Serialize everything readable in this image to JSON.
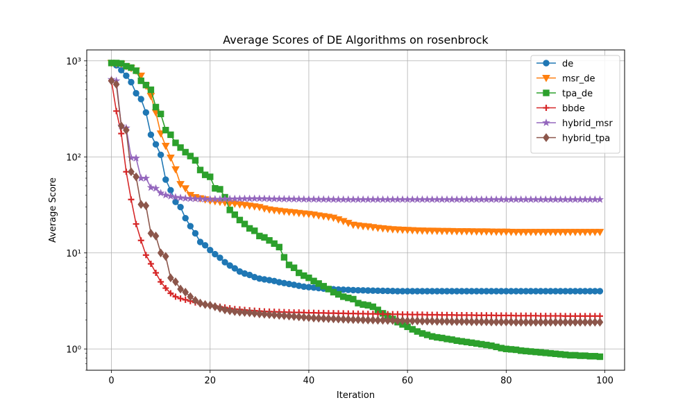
{
  "chart_data": {
    "type": "line",
    "title": "Average Scores of DE Algorithms on rosenbrock",
    "xlabel": "Iteration",
    "ylabel": "Average Score",
    "yscale": "log",
    "xlim": [
      -5,
      104
    ],
    "ylim": [
      0.6,
      1300
    ],
    "xticks": [
      0,
      20,
      40,
      60,
      80,
      100
    ],
    "xtick_labels": [
      "0",
      "20",
      "40",
      "60",
      "80",
      "100"
    ],
    "yticks": [
      1,
      10,
      100,
      1000
    ],
    "ytick_labels": [
      "10⁰",
      "10¹",
      "10²",
      "10³"
    ],
    "grid": true,
    "legend_position": "top-right",
    "series": [
      {
        "name": "de",
        "color": "#1f77b4",
        "marker": "circle",
        "x": [
          0,
          1,
          2,
          3,
          4,
          5,
          6,
          7,
          8,
          9,
          10,
          11,
          12,
          13,
          14,
          15,
          16,
          17,
          18,
          19,
          20,
          21,
          22,
          23,
          24,
          25,
          26,
          27,
          28,
          29,
          30,
          31,
          32,
          33,
          34,
          35,
          36,
          37,
          38,
          39,
          40,
          41,
          42,
          43,
          44,
          45,
          46,
          47,
          48,
          49,
          50,
          51,
          52,
          53,
          54,
          55,
          56,
          57,
          58,
          59,
          60,
          61,
          62,
          63,
          64,
          65,
          66,
          67,
          68,
          69,
          70,
          71,
          72,
          73,
          74,
          75,
          76,
          77,
          78,
          79,
          80,
          81,
          82,
          83,
          84,
          85,
          86,
          87,
          88,
          89,
          90,
          91,
          92,
          93,
          94,
          95,
          96,
          97,
          98,
          99
        ],
        "values": [
          950,
          900,
          800,
          700,
          600,
          460,
          400,
          290,
          170,
          135,
          105,
          58,
          45,
          34,
          30,
          23,
          19,
          16,
          13,
          12,
          10.7,
          9.7,
          8.9,
          8.0,
          7.4,
          6.9,
          6.4,
          6.1,
          5.9,
          5.6,
          5.4,
          5.3,
          5.2,
          5.1,
          4.95,
          4.85,
          4.75,
          4.65,
          4.55,
          4.45,
          4.4,
          4.35,
          4.3,
          4.25,
          4.2,
          4.18,
          4.16,
          4.14,
          4.12,
          4.1,
          4.08,
          4.07,
          4.06,
          4.05,
          4.04,
          4.03,
          4.02,
          4.01,
          4.0,
          4.0,
          4.0,
          4.0,
          4.0,
          4.0,
          4.0,
          4.0,
          4.0,
          4.0,
          4.0,
          4.0,
          4.0,
          4.0,
          4.0,
          4.0,
          4.0,
          4.0,
          4.0,
          4.0,
          4.0,
          4.0,
          4.0,
          4.0,
          4.0,
          4.0,
          4.0,
          4.0,
          4.0,
          4.0,
          4.0,
          4.0,
          4.0,
          4.0,
          4.0,
          4.0,
          4.0,
          4.0,
          4.0,
          4.0,
          4.0,
          4.0
        ]
      },
      {
        "name": "msr_de",
        "color": "#ff7f0e",
        "marker": "triangle-down",
        "x": [
          0,
          1,
          2,
          3,
          4,
          5,
          6,
          7,
          8,
          9,
          10,
          11,
          12,
          13,
          14,
          15,
          16,
          17,
          18,
          19,
          20,
          21,
          22,
          23,
          24,
          25,
          26,
          27,
          28,
          29,
          30,
          31,
          32,
          33,
          34,
          35,
          36,
          37,
          38,
          39,
          40,
          41,
          42,
          43,
          44,
          45,
          46,
          47,
          48,
          49,
          50,
          51,
          52,
          53,
          54,
          55,
          56,
          57,
          58,
          59,
          60,
          61,
          62,
          63,
          64,
          65,
          66,
          67,
          68,
          69,
          70,
          71,
          72,
          73,
          74,
          75,
          76,
          77,
          78,
          79,
          80,
          81,
          82,
          83,
          84,
          85,
          86,
          87,
          88,
          89,
          90,
          91,
          92,
          93,
          94,
          95,
          96,
          97,
          98,
          99
        ],
        "values": [
          950,
          940,
          930,
          880,
          840,
          790,
          700,
          550,
          430,
          290,
          175,
          130,
          98,
          74,
          52,
          47,
          40,
          38,
          37,
          36,
          35,
          34.5,
          34,
          33.5,
          33,
          32.5,
          32,
          31.5,
          31,
          30.5,
          30,
          29,
          28.3,
          27.8,
          27.4,
          27,
          26.7,
          26.4,
          26,
          25.7,
          25.4,
          25,
          24.5,
          24.1,
          23.7,
          23.2,
          22.3,
          21.4,
          20.5,
          19.6,
          19.3,
          19.0,
          18.8,
          18.5,
          18.2,
          18.0,
          17.8,
          17.6,
          17.5,
          17.4,
          17.3,
          17.2,
          17.1,
          17.05,
          17.0,
          17.0,
          16.95,
          16.9,
          16.9,
          16.85,
          16.8,
          16.8,
          16.8,
          16.75,
          16.7,
          16.7,
          16.7,
          16.65,
          16.6,
          16.6,
          16.6,
          16.55,
          16.5,
          16.5,
          16.5,
          16.5,
          16.5,
          16.5,
          16.5,
          16.5,
          16.5,
          16.5,
          16.5,
          16.5,
          16.5,
          16.5,
          16.5,
          16.5,
          16.5,
          16.5
        ]
      },
      {
        "name": "tpa_de",
        "color": "#2ca02c",
        "marker": "square",
        "x": [
          0,
          1,
          2,
          3,
          4,
          5,
          6,
          7,
          8,
          9,
          10,
          11,
          12,
          13,
          14,
          15,
          16,
          17,
          18,
          19,
          20,
          21,
          22,
          23,
          24,
          25,
          26,
          27,
          28,
          29,
          30,
          31,
          32,
          33,
          34,
          35,
          36,
          37,
          38,
          39,
          40,
          41,
          42,
          43,
          44,
          45,
          46,
          47,
          48,
          49,
          50,
          51,
          52,
          53,
          54,
          55,
          56,
          57,
          58,
          59,
          60,
          61,
          62,
          63,
          64,
          65,
          66,
          67,
          68,
          69,
          70,
          71,
          72,
          73,
          74,
          75,
          76,
          77,
          78,
          79,
          80,
          81,
          82,
          83,
          84,
          85,
          86,
          87,
          88,
          89,
          90,
          91,
          92,
          93,
          94,
          95,
          96,
          97,
          98,
          99
        ],
        "values": [
          950,
          950,
          940,
          880,
          850,
          790,
          620,
          560,
          500,
          330,
          280,
          190,
          170,
          140,
          125,
          112,
          102,
          92,
          73,
          65,
          62,
          47,
          46,
          38,
          28,
          25,
          22,
          20,
          18,
          17,
          15,
          14.5,
          13.5,
          12.5,
          11.5,
          9,
          7.5,
          7.0,
          6.2,
          5.8,
          5.5,
          5.1,
          4.8,
          4.5,
          4.2,
          3.9,
          3.7,
          3.5,
          3.4,
          3.3,
          3.0,
          2.9,
          2.85,
          2.75,
          2.55,
          2.35,
          2.2,
          2.05,
          1.9,
          1.8,
          1.7,
          1.6,
          1.52,
          1.45,
          1.4,
          1.35,
          1.32,
          1.3,
          1.27,
          1.25,
          1.22,
          1.2,
          1.18,
          1.16,
          1.14,
          1.12,
          1.1,
          1.08,
          1.05,
          1.02,
          1.0,
          0.99,
          0.98,
          0.96,
          0.95,
          0.94,
          0.93,
          0.92,
          0.91,
          0.9,
          0.89,
          0.88,
          0.87,
          0.86,
          0.86,
          0.85,
          0.85,
          0.84,
          0.84,
          0.83
        ]
      },
      {
        "name": "bbde",
        "color": "#d62728",
        "marker": "plus",
        "x": [
          0,
          1,
          2,
          3,
          4,
          5,
          6,
          7,
          8,
          9,
          10,
          11,
          12,
          13,
          14,
          15,
          16,
          17,
          18,
          19,
          20,
          21,
          22,
          23,
          24,
          25,
          26,
          27,
          28,
          29,
          30,
          31,
          32,
          33,
          34,
          35,
          36,
          37,
          38,
          39,
          40,
          41,
          42,
          43,
          44,
          45,
          46,
          47,
          48,
          49,
          50,
          51,
          52,
          53,
          54,
          55,
          56,
          57,
          58,
          59,
          60,
          61,
          62,
          63,
          64,
          65,
          66,
          67,
          68,
          69,
          70,
          71,
          72,
          73,
          74,
          75,
          76,
          77,
          78,
          79,
          80,
          81,
          82,
          83,
          84,
          85,
          86,
          87,
          88,
          89,
          90,
          91,
          92,
          93,
          94,
          95,
          96,
          97,
          98,
          99
        ],
        "values": [
          620,
          300,
          175,
          70,
          36,
          20,
          13.5,
          9.5,
          7.7,
          6.2,
          5.0,
          4.3,
          3.8,
          3.5,
          3.35,
          3.25,
          3.15,
          3.05,
          2.95,
          2.9,
          2.85,
          2.8,
          2.75,
          2.7,
          2.65,
          2.6,
          2.58,
          2.55,
          2.52,
          2.5,
          2.48,
          2.46,
          2.45,
          2.44,
          2.43,
          2.42,
          2.41,
          2.4,
          2.4,
          2.39,
          2.38,
          2.38,
          2.37,
          2.37,
          2.36,
          2.36,
          2.35,
          2.35,
          2.34,
          2.34,
          2.33,
          2.33,
          2.32,
          2.32,
          2.31,
          2.31,
          2.3,
          2.3,
          2.3,
          2.29,
          2.29,
          2.28,
          2.28,
          2.28,
          2.27,
          2.27,
          2.27,
          2.26,
          2.26,
          2.26,
          2.25,
          2.25,
          2.25,
          2.25,
          2.24,
          2.24,
          2.24,
          2.24,
          2.23,
          2.23,
          2.23,
          2.23,
          2.22,
          2.22,
          2.22,
          2.22,
          2.22,
          2.21,
          2.21,
          2.21,
          2.21,
          2.21,
          2.2,
          2.2,
          2.2,
          2.2,
          2.2,
          2.2,
          2.2,
          2.2
        ]
      },
      {
        "name": "hybrid_msr",
        "color": "#9467bd",
        "marker": "star",
        "x": [
          0,
          1,
          2,
          3,
          4,
          5,
          6,
          7,
          8,
          9,
          10,
          11,
          12,
          13,
          14,
          15,
          16,
          17,
          18,
          19,
          20,
          21,
          22,
          23,
          24,
          25,
          26,
          27,
          28,
          29,
          30,
          31,
          32,
          33,
          34,
          35,
          36,
          37,
          38,
          39,
          40,
          41,
          42,
          43,
          44,
          45,
          46,
          47,
          48,
          49,
          50,
          51,
          52,
          53,
          54,
          55,
          56,
          57,
          58,
          59,
          60,
          61,
          62,
          63,
          64,
          65,
          66,
          67,
          68,
          69,
          70,
          71,
          72,
          73,
          74,
          75,
          76,
          77,
          78,
          79,
          80,
          81,
          82,
          83,
          84,
          85,
          86,
          87,
          88,
          89,
          90,
          91,
          92,
          93,
          94,
          95,
          96,
          97,
          98,
          99
        ],
        "values": [
          640,
          620,
          210,
          200,
          98,
          97,
          60,
          60,
          48,
          47,
          42,
          40,
          39,
          38,
          37.5,
          37,
          36.8,
          36.6,
          36.5,
          36.4,
          36.3,
          36.3,
          36.3,
          36.5,
          36.5,
          36.6,
          36.6,
          36.7,
          36.7,
          36.8,
          36.8,
          36.7,
          36.6,
          36.5,
          36.5,
          36.4,
          36.4,
          36.3,
          36.3,
          36.2,
          36.2,
          36.2,
          36.1,
          36.1,
          36.1,
          36.0,
          36.0,
          36.0,
          36.0,
          36.0,
          36.0,
          36.0,
          36.0,
          36.0,
          36.0,
          36.0,
          36.0,
          36.0,
          36.0,
          36.0,
          36.0,
          36.0,
          36.0,
          36.0,
          36.0,
          36.0,
          36.0,
          36.0,
          36.0,
          36.0,
          36.0,
          36.0,
          36.0,
          36.0,
          36.0,
          36.0,
          36.0,
          36.0,
          36.0,
          36.0,
          36.0,
          36.0,
          36.0,
          36.0,
          36.0,
          36.0,
          36.0,
          36.0,
          36.0,
          36.0,
          36.0,
          36.0,
          36.0,
          36.0,
          36.0,
          36.0,
          36.0,
          36.0,
          36.0,
          36.0
        ]
      },
      {
        "name": "hybrid_tpa",
        "color": "#8c564b",
        "marker": "diamond",
        "x": [
          0,
          1,
          2,
          3,
          4,
          5,
          6,
          7,
          8,
          9,
          10,
          11,
          12,
          13,
          14,
          15,
          16,
          17,
          18,
          19,
          20,
          21,
          22,
          23,
          24,
          25,
          26,
          27,
          28,
          29,
          30,
          31,
          32,
          33,
          34,
          35,
          36,
          37,
          38,
          39,
          40,
          41,
          42,
          43,
          44,
          45,
          46,
          47,
          48,
          49,
          50,
          51,
          52,
          53,
          54,
          55,
          56,
          57,
          58,
          59,
          60,
          61,
          62,
          63,
          64,
          65,
          66,
          67,
          68,
          69,
          70,
          71,
          72,
          73,
          74,
          75,
          76,
          77,
          78,
          79,
          80,
          81,
          82,
          83,
          84,
          85,
          86,
          87,
          88,
          89,
          90,
          91,
          92,
          93,
          94,
          95,
          96,
          97,
          98,
          99
        ],
        "values": [
          620,
          570,
          210,
          190,
          70,
          62,
          32,
          31,
          16,
          15,
          10,
          9.2,
          5.5,
          5.0,
          4.2,
          3.9,
          3.5,
          3.2,
          3.0,
          2.9,
          2.85,
          2.75,
          2.65,
          2.55,
          2.5,
          2.45,
          2.42,
          2.4,
          2.38,
          2.35,
          2.32,
          2.3,
          2.28,
          2.26,
          2.24,
          2.22,
          2.2,
          2.18,
          2.16,
          2.14,
          2.12,
          2.1,
          2.09,
          2.08,
          2.07,
          2.06,
          2.05,
          2.04,
          2.03,
          2.02,
          2.02,
          2.01,
          2.0,
          2.0,
          1.99,
          1.99,
          1.98,
          1.98,
          1.97,
          1.97,
          1.96,
          1.96,
          1.96,
          1.95,
          1.95,
          1.95,
          1.94,
          1.94,
          1.94,
          1.93,
          1.93,
          1.93,
          1.93,
          1.92,
          1.92,
          1.92,
          1.92,
          1.91,
          1.91,
          1.91,
          1.91,
          1.91,
          1.9,
          1.9,
          1.9,
          1.9,
          1.9,
          1.9,
          1.9,
          1.9,
          1.9,
          1.9,
          1.9,
          1.9,
          1.9,
          1.9,
          1.9,
          1.9,
          1.9,
          1.9
        ]
      }
    ]
  }
}
